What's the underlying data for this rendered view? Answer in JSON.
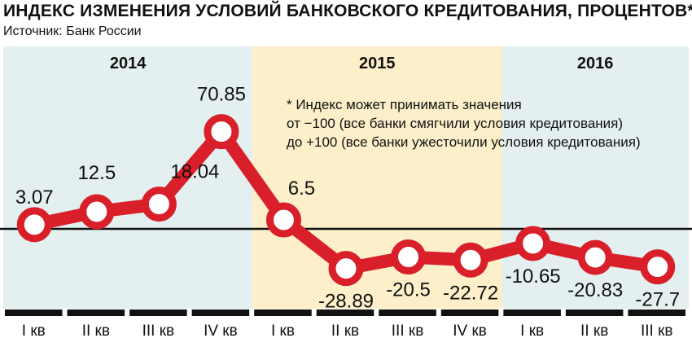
{
  "title": "ИНДЕКС ИЗМЕНЕНИЯ УСЛОВИЙ БАНКОВСКОГО КРЕДИТОВАНИЯ, ПРОЦЕНТОВ*",
  "source": "Источник: Банк России",
  "note": [
    "* Индекс может принимать значения",
    "от −100 (все банки смягчили условия кредитования)",
    "до +100 (все банки ужесточили условия кредитования)"
  ],
  "colors": {
    "line": "#d81f2a",
    "year_2014": "#e3f0ef",
    "year_2015": "#fcefc9",
    "year_2016": "#e3f0ef",
    "axis": "#111111"
  },
  "chart_data": {
    "type": "line",
    "years": [
      {
        "label": "2014",
        "quarters": 4
      },
      {
        "label": "2015",
        "quarters": 4
      },
      {
        "label": "2016",
        "quarters": 3
      }
    ],
    "categories": [
      "I кв",
      "II кв",
      "III кв",
      "IV кв",
      "I кв",
      "II кв",
      "III кв",
      "IV кв",
      "I кв",
      "II кв",
      "III кв"
    ],
    "values": [
      3.07,
      12.5,
      18.04,
      70.85,
      6.5,
      -28.89,
      -20.5,
      -22.72,
      -10.65,
      -20.83,
      -27.7
    ],
    "value_labels": [
      "3.07",
      "12.5",
      "18.04",
      "70.85",
      "6.5",
      "-28.89",
      "-20.5",
      "-22.72",
      "-10.65",
      "-20.83",
      "-27.7"
    ],
    "ylim": [
      -50,
      90
    ],
    "baseline": 0,
    "grid": false,
    "legend": "none"
  }
}
